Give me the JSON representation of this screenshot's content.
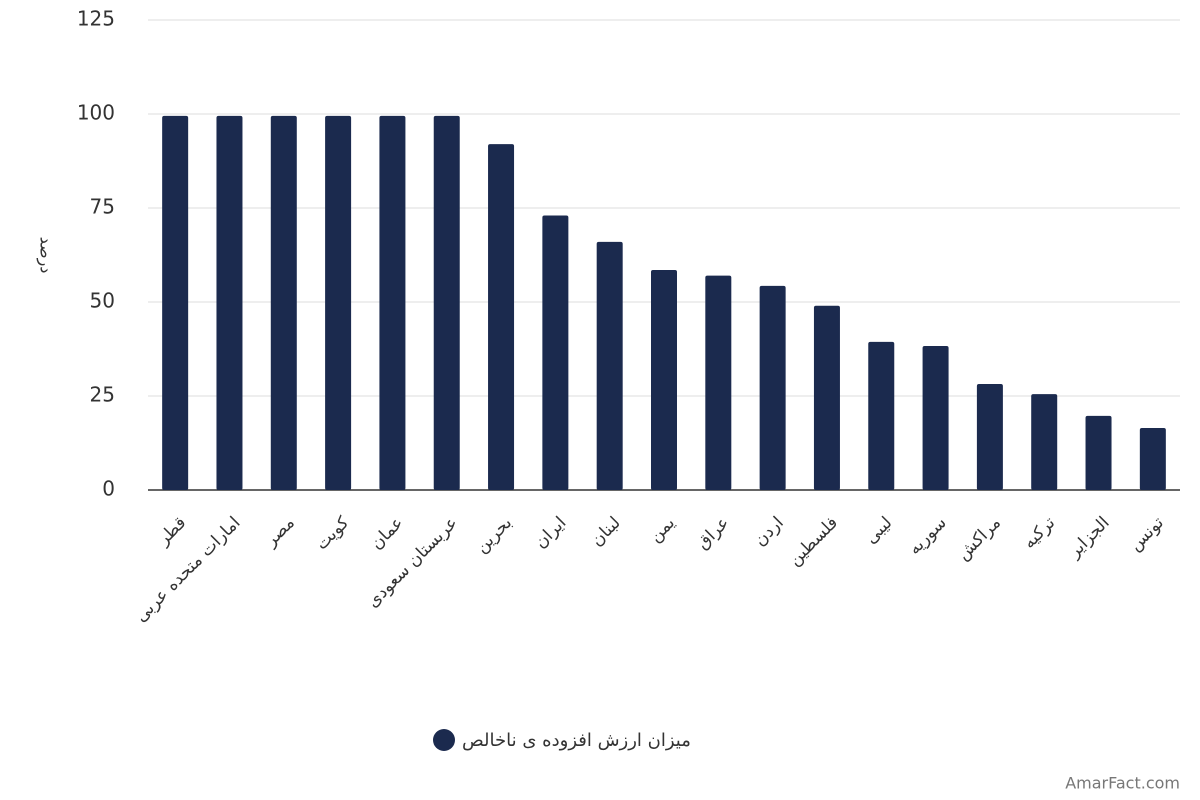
{
  "chart_data": {
    "type": "bar",
    "y_label": "درصد",
    "categories": [
      "قطر",
      "امارات متحده عربی",
      "مصر",
      "کویت",
      "عمان",
      "عربستان سعودی",
      "بحرین",
      "ایران",
      "لبنان",
      "یمن",
      "عراق",
      "اردن",
      "فلسطین",
      "لیبی",
      "سوریه",
      "مراکش",
      "ترکیه",
      "الجزایر",
      "تونس"
    ],
    "series": [
      {
        "name": "میزان ارزش افزوده ی ناخالص",
        "color": "#1b2a4e",
        "values": [
          99.5,
          99.5,
          99.5,
          99.5,
          99.5,
          99.5,
          92,
          73,
          66,
          58.5,
          57,
          54.3,
          49,
          39.4,
          38.3,
          28.2,
          25.5,
          19.7,
          16.5
        ]
      }
    ],
    "ylim": [
      0,
      125
    ],
    "yticks": [
      0,
      25,
      50,
      75,
      100,
      125
    ],
    "grid": true,
    "watermark": "AmarFact.com"
  }
}
